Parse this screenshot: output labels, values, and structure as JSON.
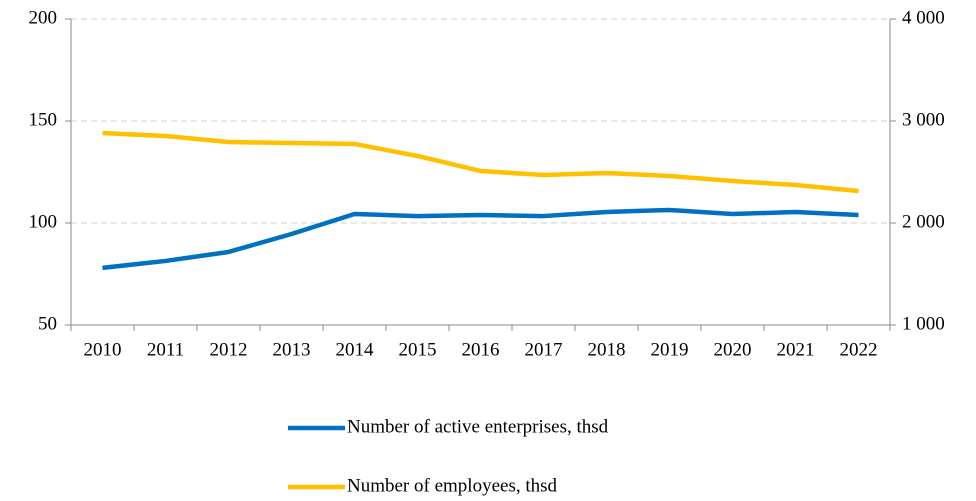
{
  "chart_data": {
    "type": "line",
    "categories": [
      "2010",
      "2011",
      "2012",
      "2013",
      "2014",
      "2015",
      "2016",
      "2017",
      "2018",
      "2019",
      "2020",
      "2021",
      "2022"
    ],
    "series": [
      {
        "name": "Number of active enterprises, thsd",
        "color": "#0070c0",
        "axis": "y",
        "values": [
          78,
          81.4,
          85.8,
          94.6,
          104.4,
          103.4,
          103.9,
          103.4,
          105.4,
          106.4,
          104.4,
          105.4,
          103.9
        ]
      },
      {
        "name": "Number of employees, thsd",
        "color": "#ffc000",
        "axis": "y2",
        "values": [
          2882,
          2853,
          2794,
          2784,
          2775,
          2657,
          2510,
          2471,
          2490,
          2461,
          2412,
          2373,
          2314
        ]
      }
    ],
    "ylim": [
      50,
      200
    ],
    "yticks": [
      50,
      100,
      150,
      200
    ],
    "y2lim": [
      1000,
      4000
    ],
    "y2ticks": [
      {
        "value": 1000,
        "label": "1 000"
      },
      {
        "value": 2000,
        "label": "2 000"
      },
      {
        "value": 3000,
        "label": "3 000"
      },
      {
        "value": 4000,
        "label": "4 000"
      }
    ],
    "grid": true,
    "legend": "bottom"
  }
}
